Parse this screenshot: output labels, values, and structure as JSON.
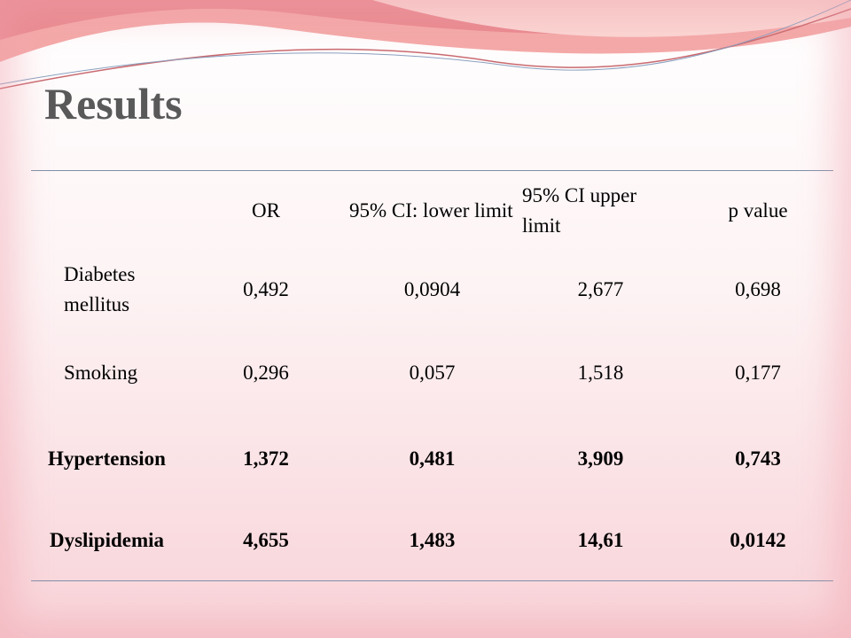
{
  "title": "Results",
  "table": {
    "columns": [
      "OR",
      "95% CI: lower limit",
      "95% CI upper limit",
      "p value"
    ],
    "rows": [
      {
        "label": "Diabetes mellitus",
        "cells": [
          "0,492",
          "0,0904",
          "2,677",
          "0,698"
        ],
        "bold": false
      },
      {
        "label": "Smoking",
        "cells": [
          "0,296",
          "0,057",
          "1,518",
          "0,177"
        ],
        "bold": false
      },
      {
        "label": "Hypertension",
        "cells": [
          "1,372",
          "0,481",
          "3,909",
          "0,743"
        ],
        "bold": true
      },
      {
        "label": "Dyslipidemia",
        "cells": [
          "4,655",
          "1,483",
          "14,61",
          "0,0142"
        ],
        "bold": true
      }
    ]
  }
}
